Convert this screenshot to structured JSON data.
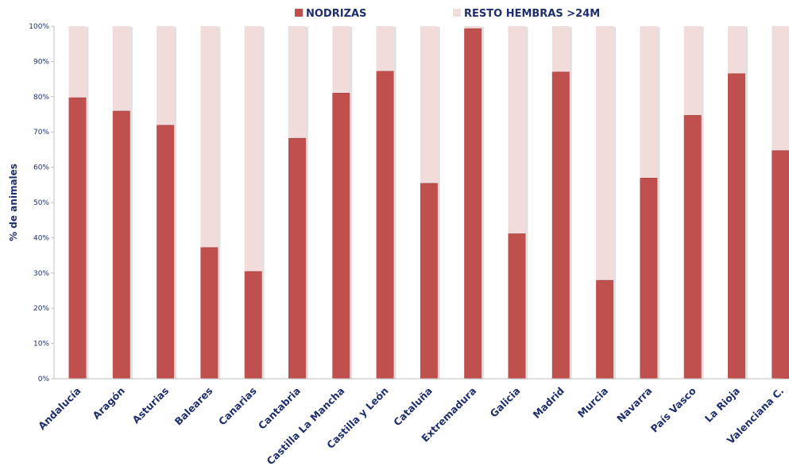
{
  "chart_data": {
    "type": "bar",
    "stacked": true,
    "percent": true,
    "ylabel": "% de animales",
    "ylim": [
      0,
      100
    ],
    "yticks": [
      "0%",
      "10%",
      "20%",
      "30%",
      "40%",
      "50%",
      "60%",
      "70%",
      "80%",
      "90%",
      "100%"
    ],
    "legend_position": "top",
    "grid": false,
    "categories": [
      "Andalucía",
      "Aragón",
      "Asturias",
      "Baleares",
      "Canarias",
      "Cantabria",
      "Castilla La Mancha",
      "Castilla y León",
      "Cataluña",
      "Extremadura",
      "Galicia",
      "Madrid",
      "Murcia",
      "Navarra",
      "País Vasco",
      "La Rioja",
      "Valenciana C."
    ],
    "series": [
      {
        "name": "NODRIZAS",
        "color": "#c0504d",
        "values": [
          79.8,
          76,
          72,
          37.3,
          30.5,
          68.3,
          81.1,
          87.3,
          55.5,
          99.4,
          41.2,
          87.1,
          28,
          57,
          74.8,
          86.6,
          64.8
        ]
      },
      {
        "name": "RESTO HEMBRAS >24M",
        "color": "#f2dcdb",
        "values": [
          20.2,
          24,
          28,
          62.7,
          69.5,
          31.7,
          18.9,
          12.7,
          44.5,
          0.6,
          58.8,
          12.9,
          72,
          43,
          25.2,
          13.4,
          35.2
        ]
      }
    ]
  }
}
